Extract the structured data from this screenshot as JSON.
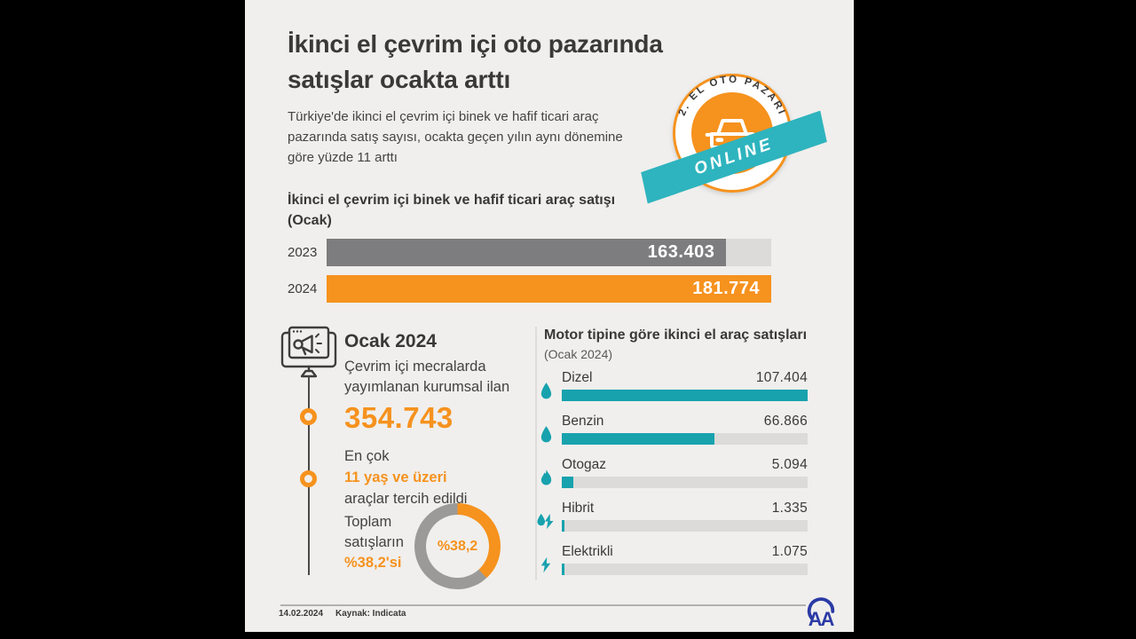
{
  "colors": {
    "page_bg": "#f0efed",
    "accent_orange": "#f6921e",
    "teal": "#17a2ae",
    "dark_text": "#3a3938",
    "aa_blue": "#2b3aa6"
  },
  "header": {
    "title_line1": "İkinci el çevrim içi oto pazarında",
    "title_line2": "satışlar ocakta arttı",
    "subtitle": "Türkiye'de ikinci el çevrim içi binek ve hafif ticari araç pazarında satış sayısı, ocakta geçen yılın aynı dönemine göre yüzde 11 arttı"
  },
  "badge": {
    "arc_text": "2. EL OTO PAZARI",
    "ribbon_text": "ONLINE",
    "icon": "car-icon",
    "circle_color": "#f6921e",
    "ribbon_color": "#2eb4be"
  },
  "sales_section": {
    "heading_line1": "İkinci el çevrim içi binek ve hafif ticari araç satışı",
    "heading_line2": "(Ocak)"
  },
  "highlights": {
    "icon": "monitor-megaphone-icon",
    "heading": "Ocak 2024",
    "desc_line1": "Çevrim içi mecralarda",
    "desc_line2": "yayımlanan kurumsal ilan",
    "big_number": "354.743",
    "pref_intro": "En çok",
    "pref_highlight": "11 yaş ve üzeri",
    "pref_rest": "araçlar tercih edildi",
    "total_line1": "Toplam",
    "total_line2": "satışların",
    "total_highlight": "%38,2'si"
  },
  "engine_section": {
    "heading": "Motor tipine göre ikinci el araç satışları",
    "subheading": "(Ocak 2024)"
  },
  "footer": {
    "date": "14.02.2024",
    "source": "Kaynak: Indicata",
    "logo": "aa-logo"
  },
  "chart_data": [
    {
      "type": "bar",
      "title": "İkinci el çevrim içi binek ve hafif ticari araç satışı (Ocak)",
      "orientation": "horizontal",
      "categories": [
        "2023",
        "2024"
      ],
      "values": [
        163403,
        181774
      ],
      "value_labels": [
        "163.403",
        "181.774"
      ],
      "bar_colors": [
        "#7d7d7f",
        "#f6921e"
      ],
      "track_color": "#dcdbd9",
      "xlim": [
        0,
        181774
      ]
    },
    {
      "type": "bar",
      "title": "Motor tipine göre ikinci el araç satışları (Ocak 2024)",
      "orientation": "horizontal",
      "categories": [
        "Dizel",
        "Benzin",
        "Otogaz",
        "Hibrit",
        "Elektrikli"
      ],
      "values": [
        107404,
        66866,
        5094,
        1335,
        1075
      ],
      "value_labels": [
        "107.404",
        "66.866",
        "5.094",
        "1.335",
        "1.075"
      ],
      "icons": [
        "droplet-icon",
        "droplet-icon",
        "flame-icon",
        "droplet-bolt-icon",
        "bolt-icon"
      ],
      "bar_color": "#17a2ae",
      "track_color": "#dcdbd9",
      "xlim": [
        0,
        107404
      ]
    },
    {
      "type": "pie",
      "title": "Toplam satışların %38,2'si",
      "values": [
        38.2,
        61.8
      ],
      "colors": [
        "#f6921e",
        "#9b9a98"
      ],
      "center_label": "%38,2"
    }
  ]
}
